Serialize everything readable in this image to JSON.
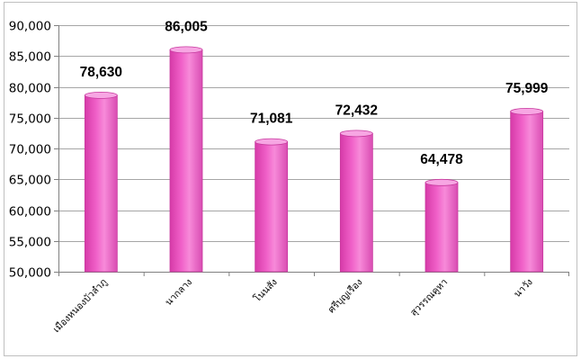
{
  "chart_data": {
    "type": "bar",
    "categories": [
      "เมืองหนองบัวลำภู",
      "นากลาง",
      "โนนสัง",
      "ศรีบุญเรือง",
      "สุวรรณคูหา",
      "นาวัง"
    ],
    "values": [
      78630,
      86005,
      71081,
      72432,
      64478,
      75999
    ],
    "data_labels": [
      "78,630",
      "86,005",
      "71,081",
      "72,432",
      "64,478",
      "75,999"
    ],
    "y_ticks": [
      "50,000",
      "55,000",
      "60,000",
      "65,000",
      "70,000",
      "75,000",
      "80,000",
      "85,000",
      "90,000"
    ],
    "ylim": [
      50000,
      90000
    ],
    "title": "",
    "xlabel": "",
    "ylabel": "",
    "grid": true,
    "legend": "none",
    "bar_color": "#f060c8",
    "bar_top_color": "#f7a6e3",
    "grid_color": "#a6a6a6"
  }
}
